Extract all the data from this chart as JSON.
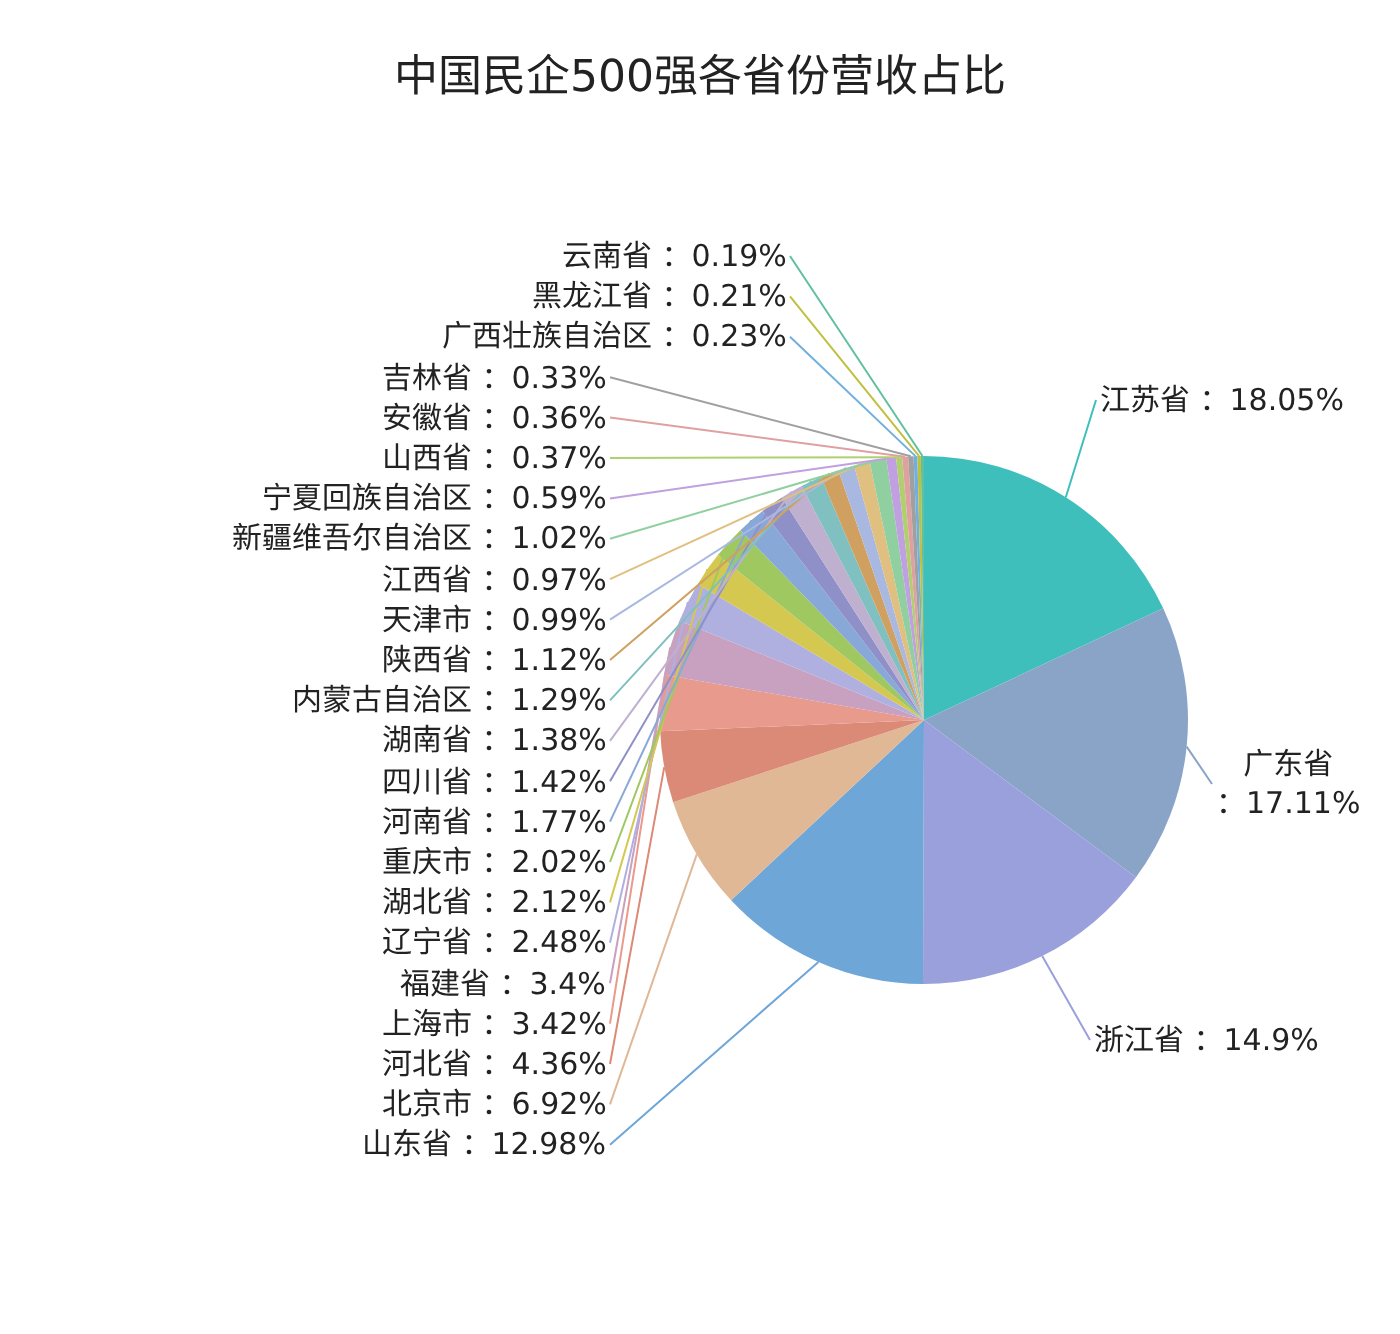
{
  "chart_data": {
    "type": "pie",
    "title": "中国民企500强各省份营收占比",
    "categories": [
      "江苏省",
      "广东省",
      "浙江省",
      "山东省",
      "北京市",
      "河北省",
      "上海市",
      "福建省",
      "辽宁省",
      "湖北省",
      "重庆市",
      "河南省",
      "四川省",
      "湖南省",
      "内蒙古自治区",
      "陕西省",
      "天津市",
      "江西省",
      "新疆维吾尔自治区",
      "宁夏回族自治区",
      "山西省",
      "安徽省",
      "吉林省",
      "广西壮族自治区",
      "黑龙江省",
      "云南省"
    ],
    "values": [
      18.05,
      17.11,
      14.9,
      12.98,
      6.92,
      4.36,
      3.42,
      3.4,
      2.48,
      2.12,
      2.02,
      1.77,
      1.42,
      1.38,
      1.29,
      1.12,
      0.99,
      0.97,
      1.02,
      0.59,
      0.37,
      0.36,
      0.33,
      0.23,
      0.21,
      0.19
    ],
    "value_labels": [
      "：18.05%",
      "：17.11%",
      "：14.9%",
      "：12.98%",
      "：6.92%",
      "：4.36%",
      "：3.42%",
      "：3.4%",
      "：2.48%",
      "：2.12%",
      "：2.02%",
      "：1.77%",
      "：1.42%",
      "：1.38%",
      "：1.29%",
      "：1.12%",
      "：0.99%",
      "：0.97%",
      "：1.02%",
      "：0.59%",
      "：0.37%",
      "：0.36%",
      "：0.33%",
      "：0.23%",
      "：0.21%",
      "：0.19%"
    ],
    "colors": [
      "#3fbfbc",
      "#8aa4c8",
      "#9aa0db",
      "#6ea6d8",
      "#e0b896",
      "#dc8a78",
      "#e89a8c",
      "#c8a0c0",
      "#b0b0e0",
      "#d4c850",
      "#a0c860",
      "#88a8d8",
      "#9090c8",
      "#c0b0d0",
      "#80c0c0",
      "#d0a060",
      "#a8b8e0",
      "#e0c080",
      "#90d0a0",
      "#c0a0e0",
      "#b0d070",
      "#e0a0a0",
      "#a0a0a0",
      "#70b0e0",
      "#c0c040",
      "#60c0a0"
    ]
  }
}
